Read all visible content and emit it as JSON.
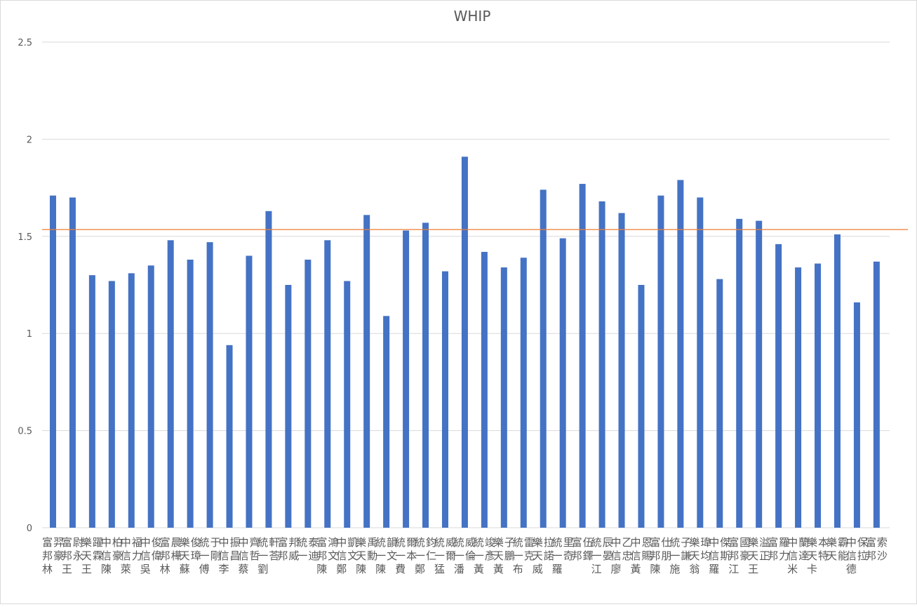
{
  "chart_data": {
    "type": "bar",
    "title": "WHIP",
    "xlabel": "",
    "ylabel": "",
    "ylim": [
      0,
      2.5
    ],
    "yticks": [
      0,
      0.5,
      1,
      1.5,
      2,
      2.5
    ],
    "ytick_labels": [
      "0",
      "0.5",
      "1",
      "1.5",
      "2",
      "2.5"
    ],
    "grid": true,
    "legend": "none",
    "bar_color": "#4472C4",
    "reference_line": {
      "value": 1.535,
      "color": "#ED7D31"
    },
    "categories": [
      "富邦林羿豪",
      "富邦王尉永",
      "樂天王躍霖",
      "中信陳柏豪",
      "中信萊福力",
      "中信吳俊偉",
      "富邦林晨樺",
      "樂天蘇俊璋",
      "統一傅于剛",
      "中信李振昌",
      "中信蔡齊哲",
      "統一劉軒荅",
      "富邦邦威",
      "統一泰迪",
      "富邦陳鴻文",
      "中信鄭凱文",
      "樂天陳禹勳",
      "統一陳韻文",
      "統一費爾本",
      "統一鄭鈞仁",
      "統一猛威爾",
      "統一潘威倫",
      "統一黃竣彥",
      "樂天黃子鵬",
      "統一布雷克",
      "樂天威拉諾",
      "統一羅里奇",
      "富邦伍鐸",
      "統一江辰晏",
      "中信廖乙忠",
      "中信黃恩賜",
      "富邦陳仕朋",
      "統一施子謙",
      "樂天翁瑋均",
      "中信羅傑斯",
      "富邦江國豪",
      "樂天王溢正",
      "富邦羅力",
      "中信米蘭達",
      "樂天卡本特",
      "樂天霸能",
      "中信德保拉",
      "富邦索沙"
    ],
    "values": [
      1.71,
      1.7,
      1.3,
      1.27,
      1.31,
      1.35,
      1.48,
      1.38,
      1.47,
      0.94,
      1.4,
      1.63,
      1.25,
      1.38,
      1.48,
      1.27,
      1.61,
      1.09,
      1.53,
      1.57,
      1.32,
      1.91,
      1.42,
      1.34,
      1.39,
      1.74,
      1.49,
      1.77,
      1.68,
      1.62,
      1.25,
      1.71,
      1.79,
      1.7,
      1.28,
      1.59,
      1.58,
      1.46,
      1.34,
      1.36,
      1.51,
      1.16,
      1.37
    ]
  }
}
